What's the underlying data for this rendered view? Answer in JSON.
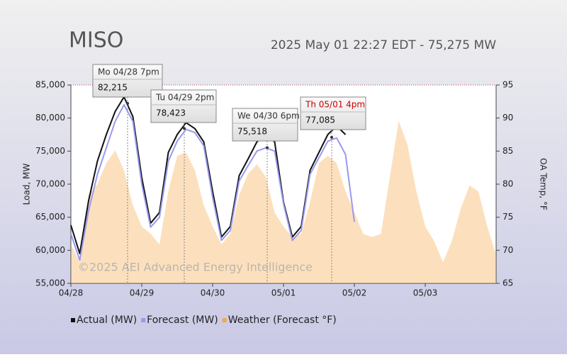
{
  "chart_data": {
    "type": "line",
    "title": "MISO",
    "subtitle": "2025 May 01 22:27 EDT - 75,275 MW",
    "watermark": "©2025 AEI Advanced Energy Intelligence",
    "y_label": "Load, MW",
    "y2_label": "OA Temp, °F",
    "categories": [
      "04/28",
      null,
      null,
      null,
      null,
      null,
      null,
      null,
      "04/29",
      null,
      null,
      null,
      null,
      null,
      null,
      null,
      "04/30",
      null,
      null,
      null,
      null,
      null,
      null,
      null,
      "05/01",
      null,
      null,
      null,
      null,
      null,
      null,
      null,
      "05/02",
      null,
      null,
      null,
      null,
      null,
      null,
      null,
      "05/03",
      null,
      null,
      null,
      null,
      null,
      null,
      null,
      null
    ],
    "series": [
      {
        "name": "Actual (MW)",
        "color": "#111111",
        "values": [
          63800,
          59500,
          67500,
          73500,
          77500,
          81000,
          83200,
          80200,
          71000,
          64100,
          65700,
          74800,
          77500,
          79300,
          78400,
          76400,
          68900,
          62000,
          63600,
          71300,
          73800,
          76400,
          77500,
          76400,
          67300,
          62000,
          63600,
          72100,
          74800,
          77500,
          78800,
          77500,
          null,
          null,
          null,
          null,
          null,
          null,
          null,
          null,
          null,
          null,
          null,
          null,
          null,
          null,
          null,
          null,
          null
        ]
      },
      {
        "name": "Forecast (MW)",
        "color": "#9999ee",
        "values": [
          62500,
          58500,
          66000,
          71500,
          75500,
          79500,
          82000,
          79500,
          70000,
          63500,
          65000,
          73500,
          76500,
          78300,
          77800,
          75800,
          68000,
          61500,
          63000,
          70500,
          72800,
          75000,
          75500,
          75000,
          67000,
          61500,
          63000,
          71500,
          74000,
          76500,
          77000,
          74500,
          64300,
          null,
          null,
          null,
          null,
          null,
          null,
          null,
          null,
          null,
          null,
          null,
          null,
          null,
          null,
          null,
          null
        ]
      },
      {
        "name": "Weather (Forecast °F)",
        "color": "#f5a742",
        "axis": "y2",
        "area": true,
        "values": [
          70.9,
          68.2,
          78.4,
          80,
          83.2,
          85.1,
          82.1,
          76.8,
          73.6,
          72.5,
          70.9,
          78.9,
          84.3,
          84.8,
          82.1,
          76.8,
          73.6,
          70.9,
          72.5,
          78.4,
          81.6,
          83,
          81.1,
          75.7,
          73.6,
          72,
          72.5,
          77.3,
          83.2,
          84.3,
          83.2,
          78.9,
          75.7,
          72.5,
          72,
          72.5,
          81.1,
          89.6,
          85.9,
          78.9,
          73.6,
          71.4,
          68.2,
          71.4,
          76.3,
          79.8,
          78.9,
          73.6,
          69.3
        ]
      }
    ],
    "ylim": [
      55000,
      85000
    ],
    "yticks": [
      {
        "value": 55000,
        "label": "55,000"
      },
      {
        "value": 60000,
        "label": "60,000"
      },
      {
        "value": 65000,
        "label": "65,000"
      },
      {
        "value": 70000,
        "label": "70,000"
      },
      {
        "value": 75000,
        "label": "75,000"
      },
      {
        "value": 80000,
        "label": "80,000"
      },
      {
        "value": 85000,
        "label": "85,000"
      }
    ],
    "y2lim": [
      65,
      95
    ],
    "y2ticks": [
      65,
      70,
      75,
      80,
      85,
      90,
      95
    ],
    "grid": false,
    "annotations": [
      {
        "label": "Mo 04/28 7pm",
        "value": 82215,
        "value_label": "82,215",
        "color": "#333333"
      },
      {
        "label": "Tu 04/29 2pm",
        "value": 78423,
        "value_label": "78,423",
        "color": "#333333"
      },
      {
        "label": "We 04/30 6pm",
        "value": 75518,
        "value_label": "75,518",
        "color": "#333333"
      },
      {
        "label": "Th 05/01 4pm",
        "value": 77085,
        "value_label": "77,085",
        "color": "#cc0000"
      }
    ]
  }
}
